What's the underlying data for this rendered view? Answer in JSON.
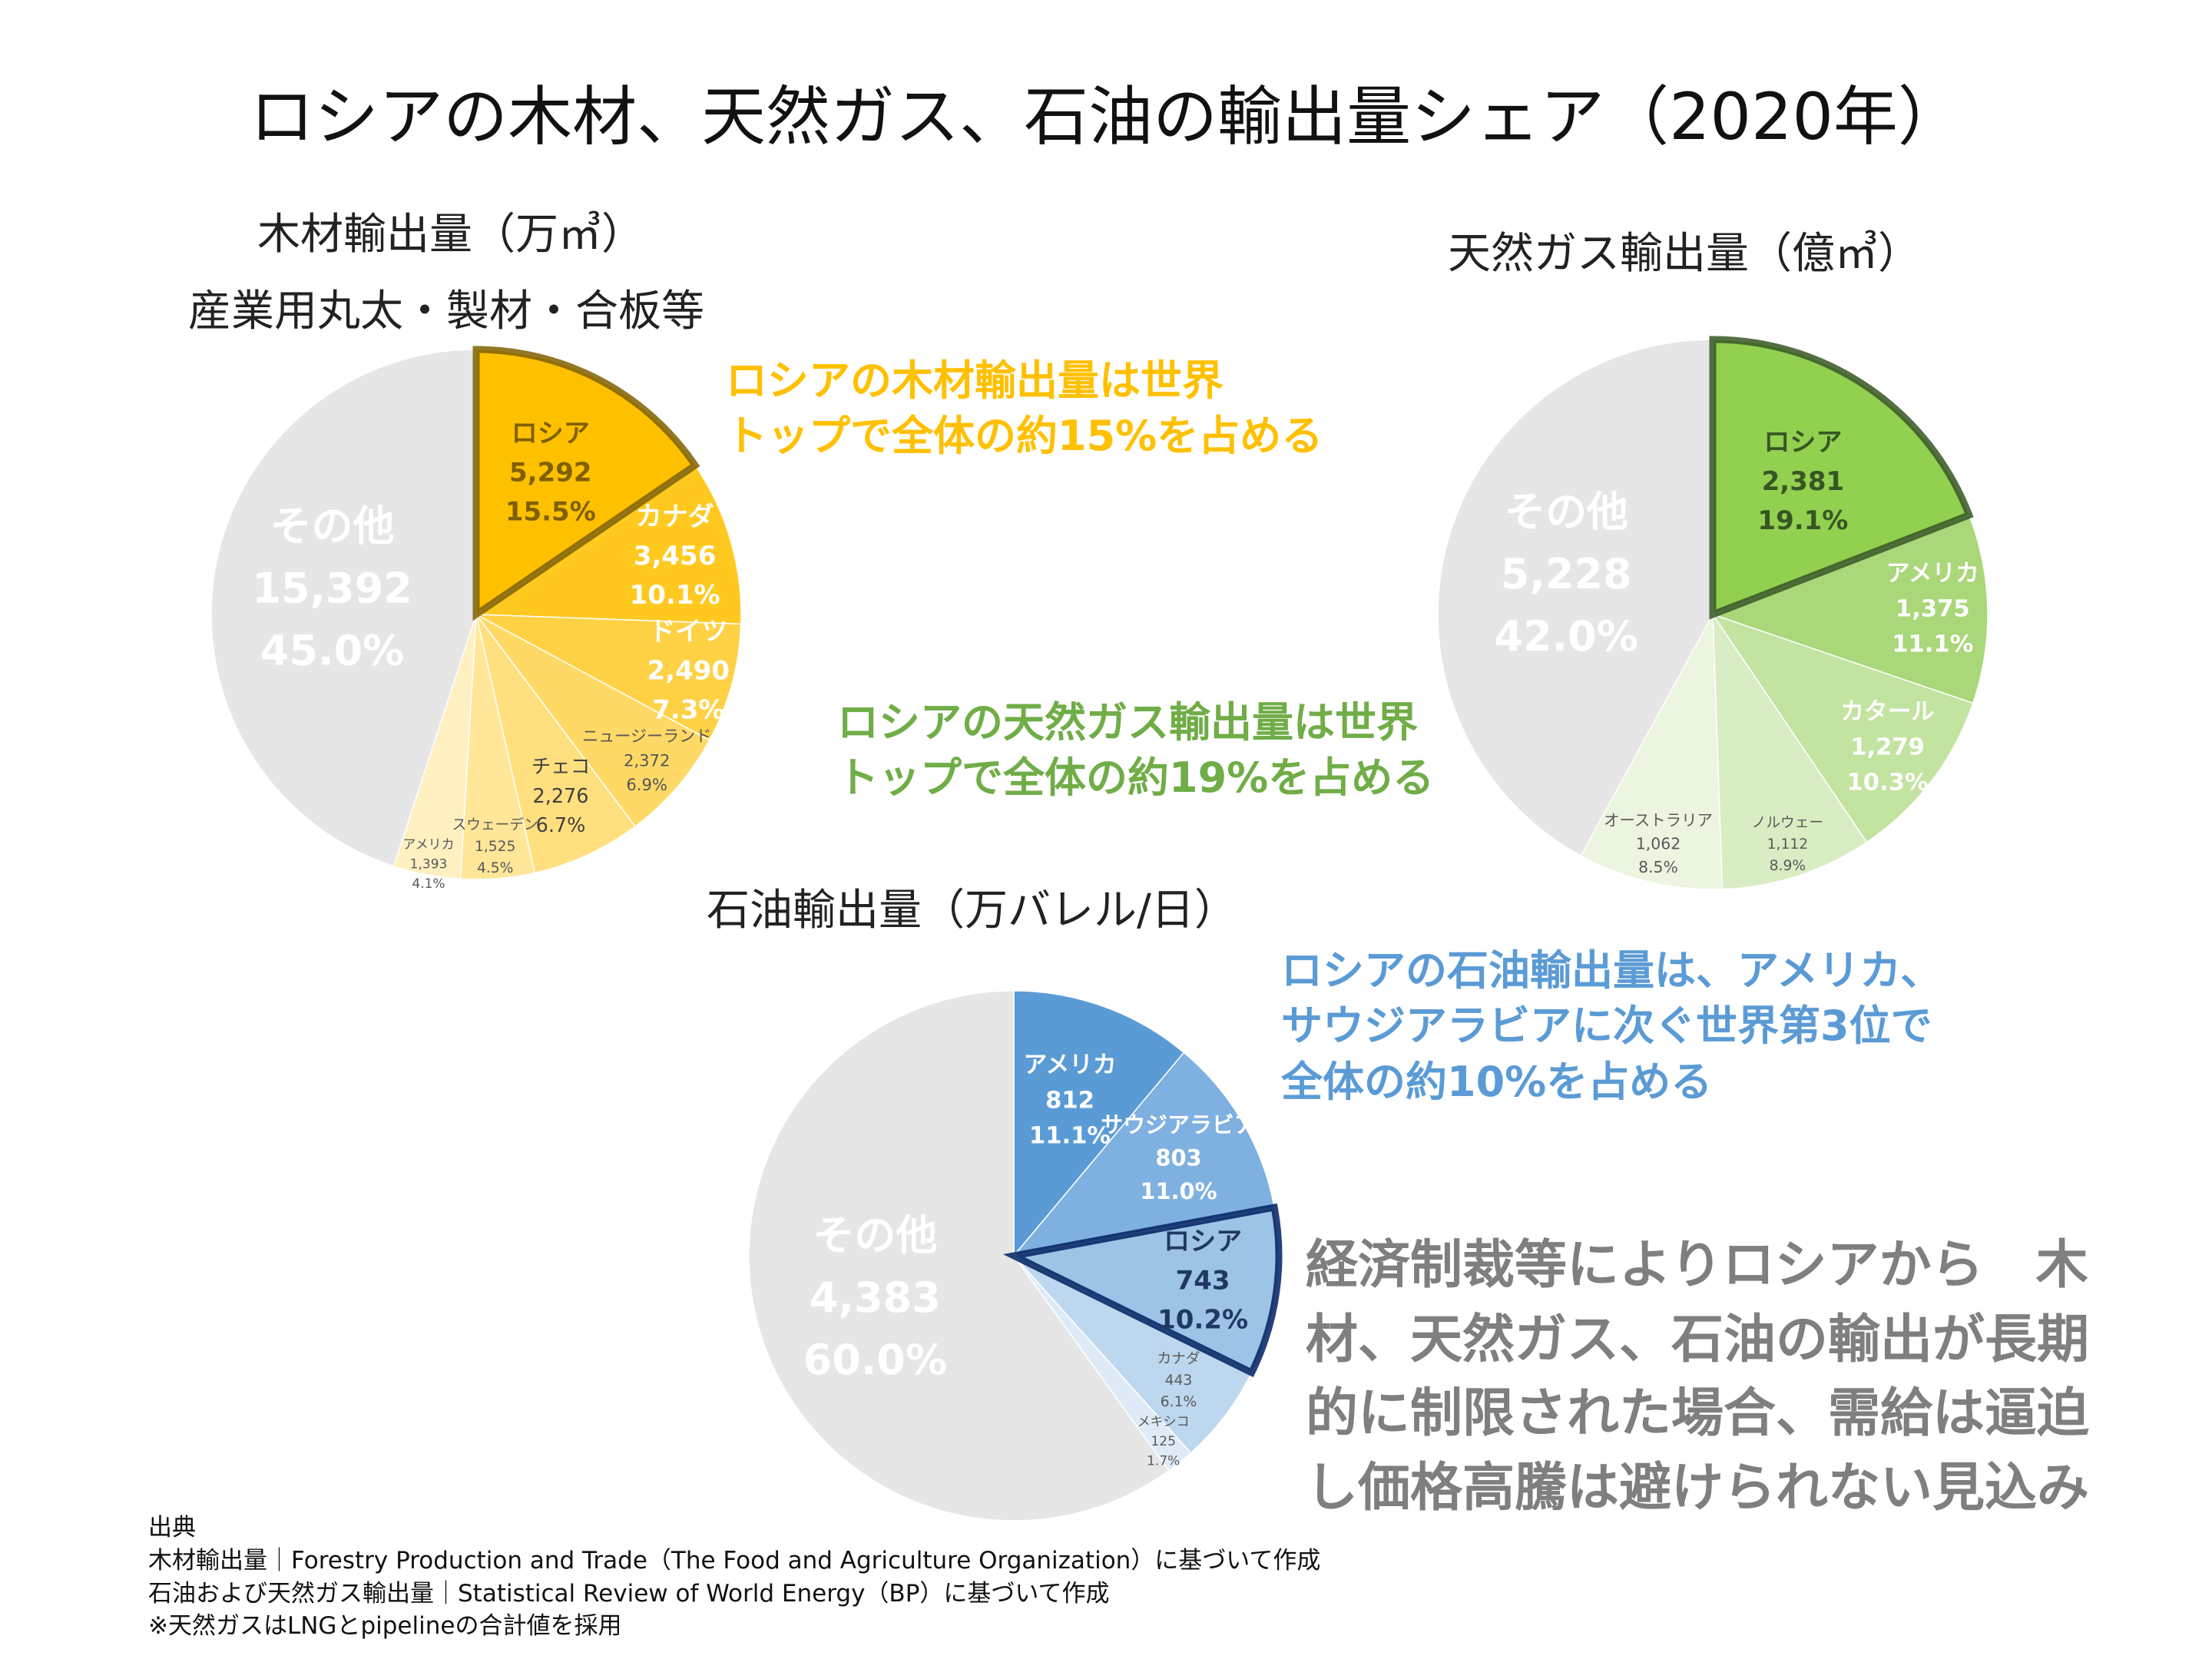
{
  "title": "ロシアの木材、天然ガス、石油の輸出量シェア（2020年）",
  "colors": {
    "wood_accent": "#ffc000",
    "gas_accent": "#70ad47",
    "oil_accent": "#5b9bd5",
    "other_gray": "#e6e6e6",
    "conclusion_gray": "#7f7f7f"
  },
  "chart_data": [
    {
      "type": "pie",
      "id": "wood",
      "title": "木材輸出量（万㎥）",
      "subtitle": "産業用丸太・製材・合板等",
      "slices": [
        {
          "name": "ロシア",
          "value_label": "5,292",
          "pct_label": "15.5%",
          "value": 5292,
          "pct": 15.5,
          "color": "#ffc000",
          "highlight": true,
          "text_color": "#7f6000"
        },
        {
          "name": "カナダ",
          "value_label": "3,456",
          "pct_label": "10.1%",
          "value": 3456,
          "pct": 10.1,
          "color": "#ffc91f",
          "text_color": "#ffffff"
        },
        {
          "name": "ドイツ",
          "value_label": "2,490",
          "pct_label": "7.3%",
          "value": 2490,
          "pct": 7.3,
          "color": "#ffd144",
          "text_color": "#ffffff"
        },
        {
          "name": "ニュージーランド",
          "value_label": "2,372",
          "pct_label": "6.9%",
          "value": 2372,
          "pct": 6.9,
          "color": "#ffd966",
          "text_color": "#555555"
        },
        {
          "name": "チェコ",
          "value_label": "2,276",
          "pct_label": "6.7%",
          "value": 2276,
          "pct": 6.7,
          "color": "#ffdf7e",
          "text_color": "#404040"
        },
        {
          "name": "スウェーデン",
          "value_label": "1,525",
          "pct_label": "4.5%",
          "value": 1525,
          "pct": 4.5,
          "color": "#ffe699",
          "text_color": "#595959"
        },
        {
          "name": "アメリカ",
          "value_label": "1,393",
          "pct_label": "4.1%",
          "value": 1393,
          "pct": 4.1,
          "color": "#fff0c2",
          "text_color": "#595959"
        },
        {
          "name": "その他",
          "value_label": "15,392",
          "pct_label": "45.0%",
          "value": 15392,
          "pct": 45.0,
          "color": "#e6e6e6",
          "text_color": "#ffffff"
        }
      ]
    },
    {
      "type": "pie",
      "id": "gas",
      "title": "天然ガス輸出量（億㎥）",
      "slices": [
        {
          "name": "ロシア",
          "value_label": "2,381",
          "pct_label": "19.1%",
          "value": 2381,
          "pct": 19.1,
          "color": "#92d050",
          "highlight": true,
          "text_color": "#375623"
        },
        {
          "name": "アメリカ",
          "value_label": "1,375",
          "pct_label": "11.1%",
          "value": 1375,
          "pct": 11.1,
          "color": "#a9d77a",
          "text_color": "#ffffff"
        },
        {
          "name": "カタール",
          "value_label": "1,279",
          "pct_label": "10.3%",
          "value": 1279,
          "pct": 10.3,
          "color": "#c3e3a1",
          "text_color": "#ffffff"
        },
        {
          "name": "ノルウェー",
          "value_label": "1,112",
          "pct_label": "8.9%",
          "value": 1112,
          "pct": 8.9,
          "color": "#d9edc4",
          "text_color": "#595959"
        },
        {
          "name": "オーストラリア",
          "value_label": "1,062",
          "pct_label": "8.5%",
          "value": 1062,
          "pct": 8.5,
          "color": "#ebf5e0",
          "text_color": "#595959"
        },
        {
          "name": "その他",
          "value_label": "5,228",
          "pct_label": "42.0%",
          "value": 5228,
          "pct": 42.0,
          "color": "#e6e6e6",
          "text_color": "#ffffff"
        }
      ]
    },
    {
      "type": "pie",
      "id": "oil",
      "title": "石油輸出量（万バレル/日）",
      "slices": [
        {
          "name": "アメリカ",
          "value_label": "812",
          "pct_label": "11.1%",
          "value": 812,
          "pct": 11.1,
          "color": "#5b9bd5",
          "text_color": "#ffffff"
        },
        {
          "name": "サウジアラビア",
          "value_label": "803",
          "pct_label": "11.0%",
          "value": 803,
          "pct": 11.0,
          "color": "#7eb0e0",
          "text_color": "#ffffff"
        },
        {
          "name": "ロシア",
          "value_label": "743",
          "pct_label": "10.2%",
          "value": 743,
          "pct": 10.2,
          "color": "#9dc3e6",
          "highlight": true,
          "text_color": "#1f3864"
        },
        {
          "name": "カナダ",
          "value_label": "443",
          "pct_label": "6.1%",
          "value": 443,
          "pct": 6.1,
          "color": "#bdd7ee",
          "text_color": "#595959"
        },
        {
          "name": "メキシコ",
          "value_label": "125",
          "pct_label": "1.7%",
          "value": 125,
          "pct": 1.7,
          "color": "#deebf7",
          "text_color": "#595959"
        },
        {
          "name": "その他",
          "value_label": "4,383",
          "pct_label": "60.0%",
          "value": 4383,
          "pct": 60.0,
          "color": "#e6e6e6",
          "text_color": "#ffffff"
        }
      ]
    }
  ],
  "callouts": {
    "wood": "ロシアの木材輸出量は世界\nトップで全体の約15%を占める",
    "gas": "ロシアの天然ガス輸出量は世界\nトップで全体の約19%を占める",
    "oil": "ロシアの石油輸出量は、アメリカ、\nサウジアラビアに次ぐ世界第3位で\n全体の約10%を占める"
  },
  "conclusion": "経済制裁等によりロシアから　木\n材、天然ガス、石油の輸出が長期\n的に制限された場合、需給は逼迫\nし価格高騰は避けられない見込み",
  "source": "出典\n木材輸出量｜Forestry Production and Trade（The Food and Agriculture Organization）に基づいて作成\n石油および天然ガス輸出量｜Statistical Review of World Energy（BP）に基づいて作成\n※天然ガスはLNGとpipelineの合計値を採用"
}
